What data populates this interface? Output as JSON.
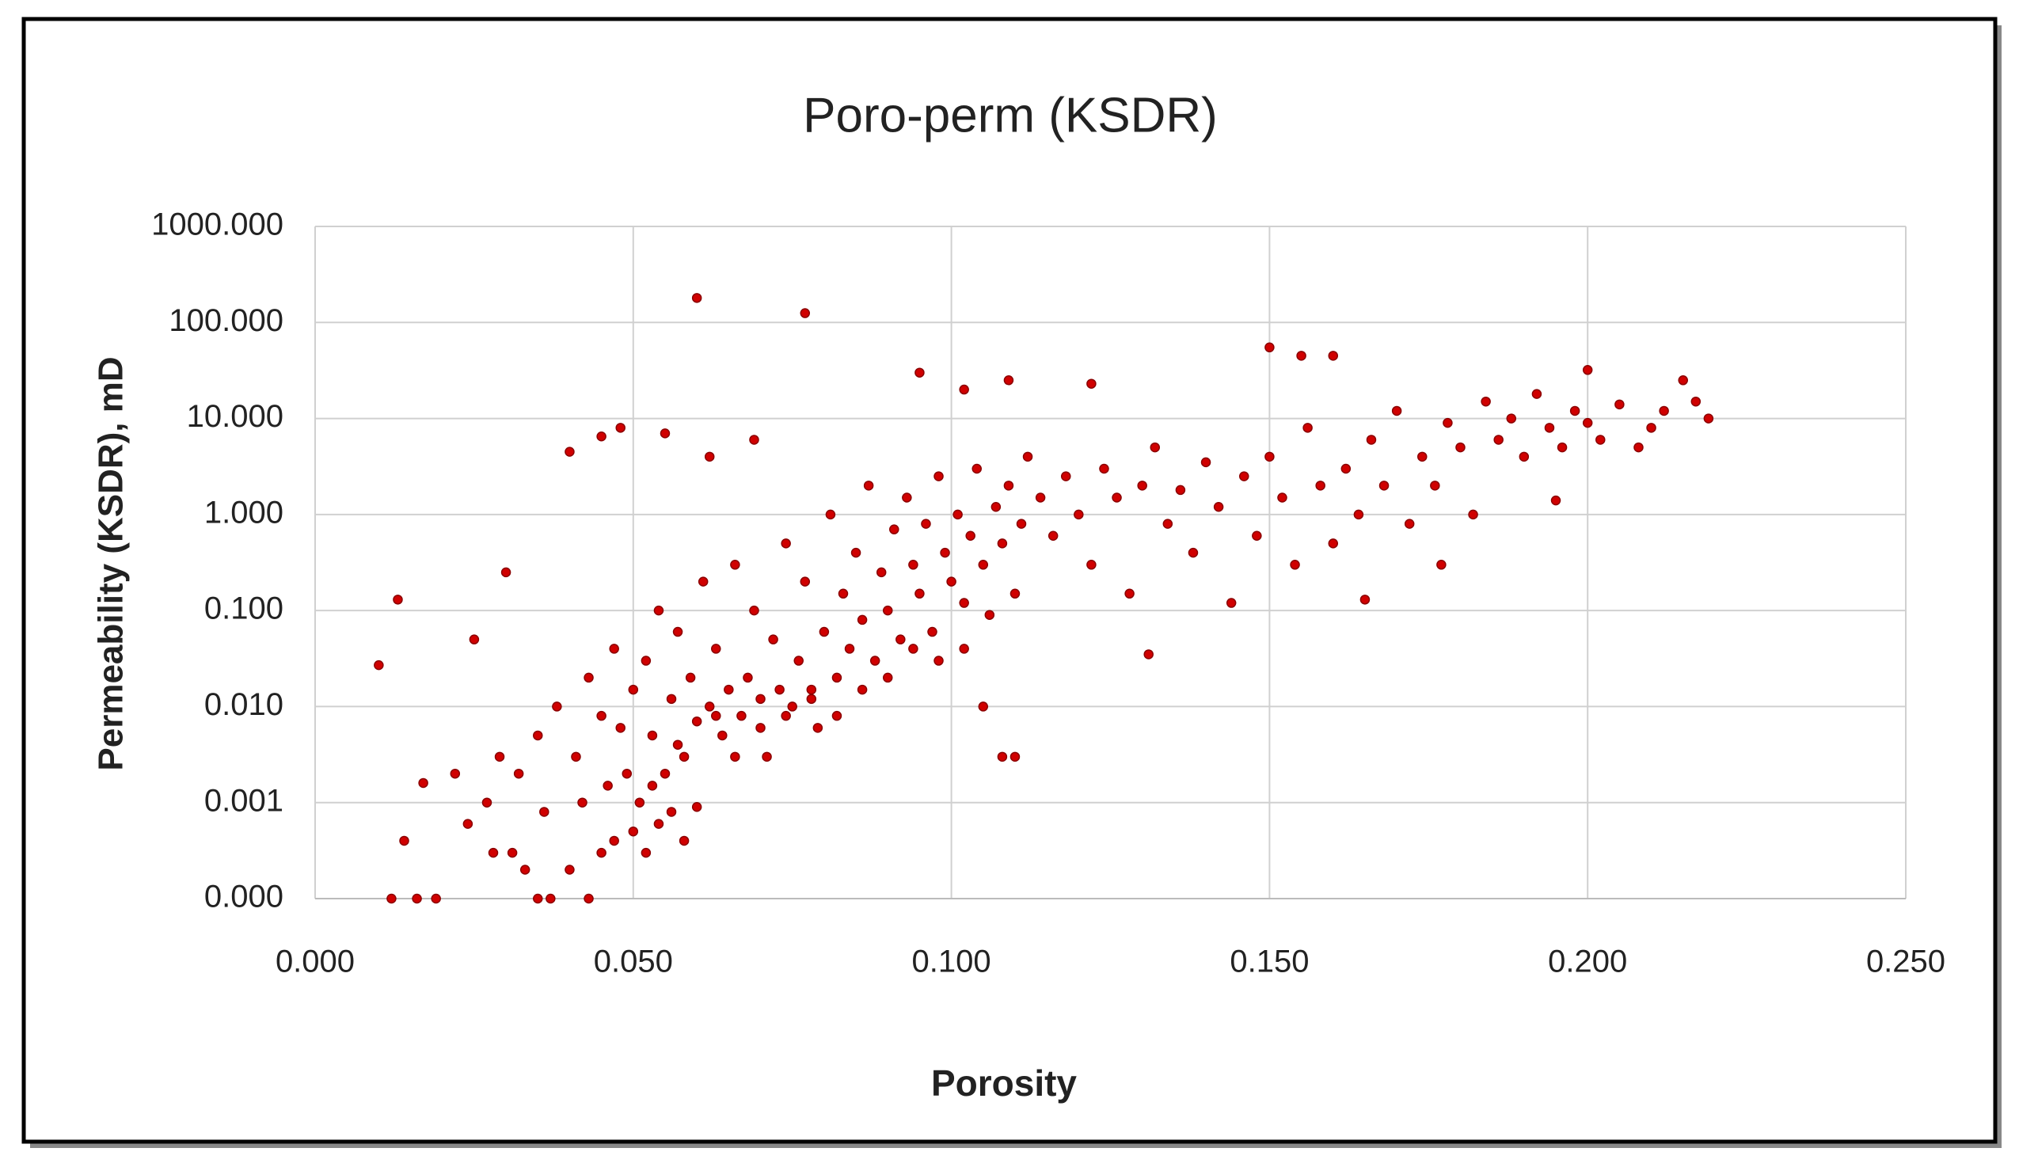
{
  "chart_data": {
    "type": "scatter",
    "title": "Poro-perm (KSDR)",
    "x_label": "Porosity",
    "y_label": "Permeability (KSDR), mD",
    "color": "#d00000",
    "grid": true,
    "log_y": true,
    "xlim": [
      0,
      0.25
    ],
    "xticks": [
      {
        "value": 0,
        "label": "0.000"
      },
      {
        "value": 0.05,
        "label": "0.050"
      },
      {
        "value": 0.1,
        "label": "0.100"
      },
      {
        "value": 0.15,
        "label": "0.150"
      },
      {
        "value": 0.2,
        "label": "0.200"
      },
      {
        "value": 0.25,
        "label": "0.250"
      }
    ],
    "ylim": [
      0.0001,
      1000
    ],
    "yticks": [
      {
        "value": 0.0001,
        "label": "0.000"
      },
      {
        "value": 0.001,
        "label": "0.001"
      },
      {
        "value": 0.01,
        "label": "0.010"
      },
      {
        "value": 0.1,
        "label": "0.100"
      },
      {
        "value": 1,
        "label": "1.000"
      },
      {
        "value": 10,
        "label": "10.000"
      },
      {
        "value": 100,
        "label": "100.000"
      },
      {
        "value": 1000,
        "label": "1000.000"
      }
    ],
    "x": [
      0.06,
      0.077,
      0.01,
      0.013,
      0.012,
      0.016,
      0.019,
      0.014,
      0.017,
      0.022,
      0.025,
      0.03,
      0.04,
      0.045,
      0.048,
      0.055,
      0.062,
      0.069,
      0.095,
      0.102,
      0.109,
      0.122,
      0.131,
      0.108,
      0.11,
      0.15,
      0.155,
      0.16,
      0.2,
      0.215,
      0.219,
      0.195,
      0.165,
      0.177,
      0.028,
      0.031,
      0.033,
      0.035,
      0.037,
      0.04,
      0.043,
      0.045,
      0.047,
      0.05,
      0.052,
      0.054,
      0.056,
      0.058,
      0.06,
      0.032,
      0.035,
      0.038,
      0.041,
      0.043,
      0.045,
      0.047,
      0.049,
      0.05,
      0.051,
      0.052,
      0.053,
      0.054,
      0.055,
      0.056,
      0.057,
      0.058,
      0.059,
      0.06,
      0.061,
      0.062,
      0.063,
      0.064,
      0.065,
      0.066,
      0.067,
      0.068,
      0.069,
      0.07,
      0.071,
      0.072,
      0.073,
      0.074,
      0.075,
      0.076,
      0.077,
      0.078,
      0.079,
      0.08,
      0.081,
      0.082,
      0.083,
      0.084,
      0.085,
      0.086,
      0.087,
      0.088,
      0.089,
      0.09,
      0.091,
      0.092,
      0.093,
      0.094,
      0.095,
      0.096,
      0.097,
      0.098,
      0.099,
      0.1,
      0.101,
      0.102,
      0.103,
      0.104,
      0.105,
      0.106,
      0.107,
      0.108,
      0.109,
      0.11,
      0.111,
      0.112,
      0.114,
      0.116,
      0.118,
      0.12,
      0.122,
      0.124,
      0.126,
      0.128,
      0.13,
      0.132,
      0.134,
      0.136,
      0.138,
      0.14,
      0.142,
      0.144,
      0.146,
      0.148,
      0.15,
      0.152,
      0.154,
      0.156,
      0.158,
      0.16,
      0.162,
      0.164,
      0.166,
      0.168,
      0.17,
      0.172,
      0.174,
      0.176,
      0.178,
      0.18,
      0.182,
      0.184,
      0.186,
      0.188,
      0.19,
      0.192,
      0.194,
      0.196,
      0.198,
      0.2,
      0.202,
      0.205,
      0.208,
      0.21,
      0.212,
      0.217,
      0.042,
      0.046,
      0.048,
      0.053,
      0.057,
      0.063,
      0.066,
      0.07,
      0.074,
      0.078,
      0.082,
      0.086,
      0.09,
      0.094,
      0.098,
      0.102,
      0.105,
      0.024,
      0.027,
      0.029,
      0.036
    ],
    "values": [
      180,
      125,
      0.027,
      0.13,
      0.0001,
      0.0001,
      0.0001,
      0.0004,
      0.0016,
      0.002,
      0.05,
      0.25,
      4.5,
      6.5,
      8,
      7,
      4,
      6,
      30,
      20,
      25,
      23,
      0.035,
      0.003,
      0.003,
      55,
      45,
      45,
      32,
      25,
      10,
      1.4,
      0.13,
      0.3,
      0.0003,
      0.0003,
      0.0002,
      0.0001,
      0.0001,
      0.0002,
      0.0001,
      0.0003,
      0.0004,
      0.0005,
      0.0003,
      0.0006,
      0.0008,
      0.0004,
      0.0009,
      0.002,
      0.005,
      0.01,
      0.003,
      0.02,
      0.008,
      0.04,
      0.002,
      0.015,
      0.001,
      0.03,
      0.005,
      0.1,
      0.002,
      0.012,
      0.06,
      0.003,
      0.02,
      0.007,
      0.2,
      0.01,
      0.04,
      0.005,
      0.015,
      0.3,
      0.008,
      0.02,
      0.1,
      0.012,
      0.003,
      0.05,
      0.015,
      0.5,
      0.01,
      0.03,
      0.2,
      0.015,
      0.006,
      0.06,
      1.0,
      0.02,
      0.15,
      0.04,
      0.4,
      0.08,
      2.0,
      0.03,
      0.25,
      0.1,
      0.7,
      0.05,
      1.5,
      0.3,
      0.15,
      0.8,
      0.06,
      2.5,
      0.4,
      0.2,
      1.0,
      0.12,
      0.6,
      3.0,
      0.3,
      0.09,
      1.2,
      0.5,
      2.0,
      0.15,
      0.8,
      4.0,
      1.5,
      0.6,
      2.5,
      1.0,
      0.3,
      3.0,
      1.5,
      0.15,
      2.0,
      5.0,
      0.8,
      1.8,
      0.4,
      3.5,
      1.2,
      0.12,
      2.5,
      0.6,
      4.0,
      1.5,
      0.3,
      8.0,
      2.0,
      0.5,
      3.0,
      1.0,
      6.0,
      2.0,
      12,
      0.8,
      4.0,
      2.0,
      9.0,
      5.0,
      1.0,
      15,
      6.0,
      10,
      4.0,
      18,
      8.0,
      5.0,
      12,
      9,
      6,
      14,
      5,
      8,
      12,
      15,
      0.001,
      0.0015,
      0.006,
      0.0015,
      0.004,
      0.008,
      0.003,
      0.006,
      0.008,
      0.012,
      0.008,
      0.015,
      0.02,
      0.04,
      0.03,
      0.04,
      0.01,
      0.0006,
      0.001,
      0.003,
      0.0008
    ]
  }
}
